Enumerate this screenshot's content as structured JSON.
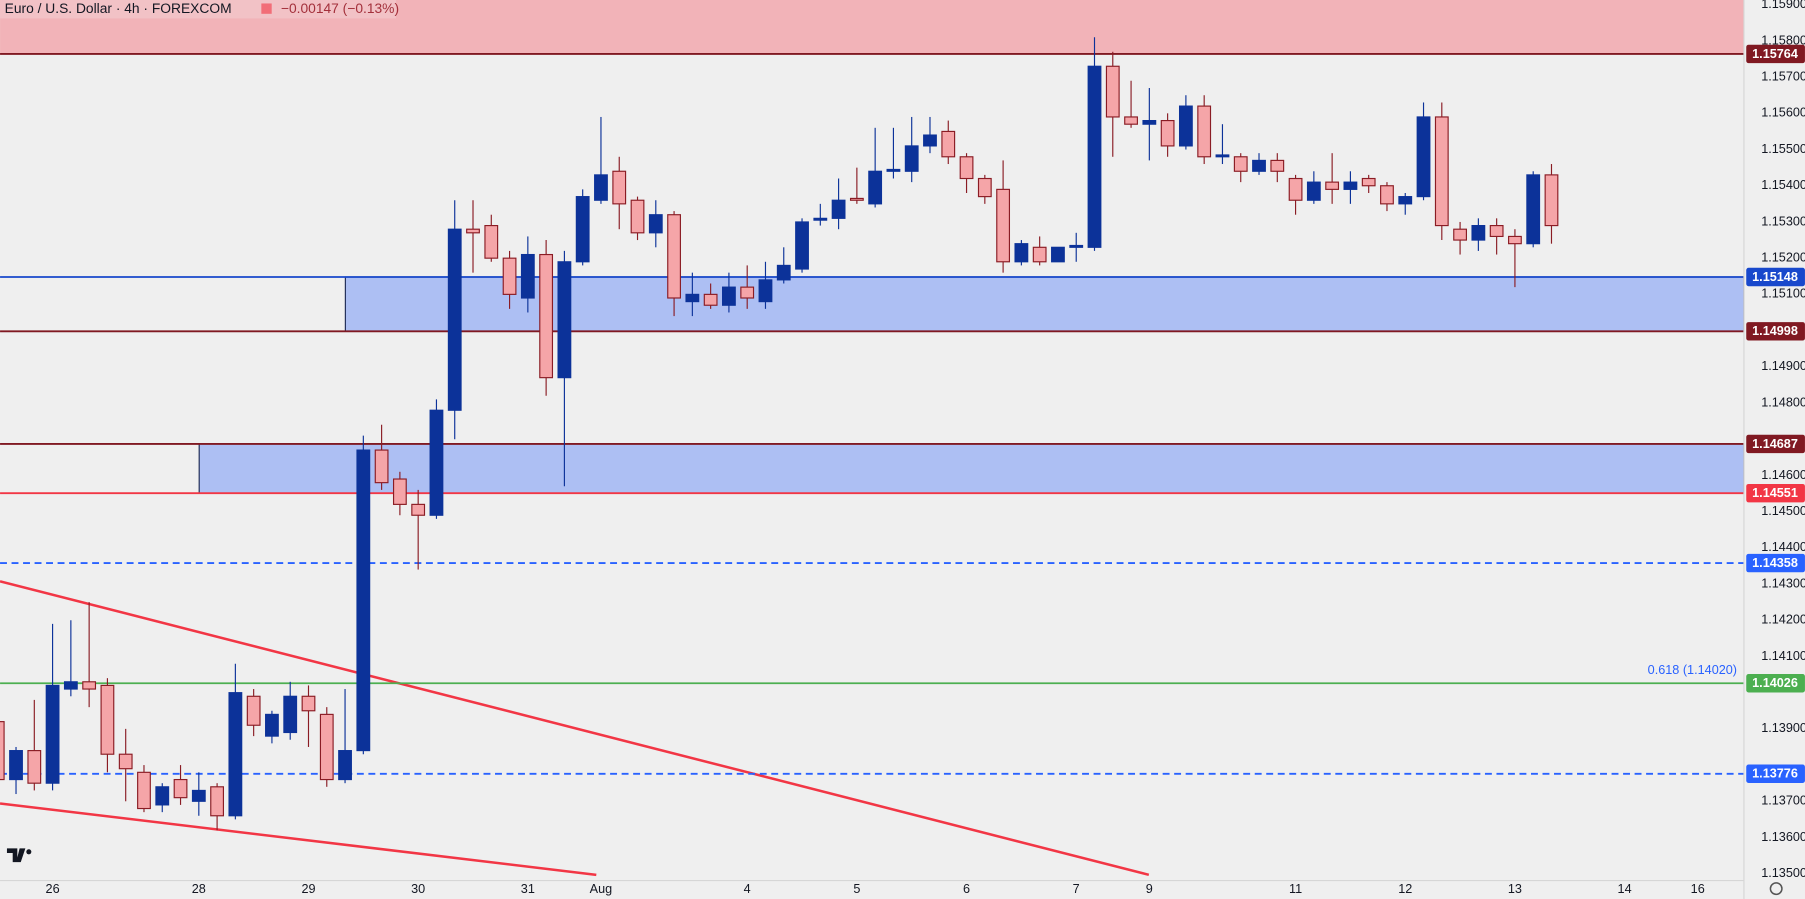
{
  "chart_data": {
    "type": "candlestick",
    "title": "Euro / U.S. Dollar · 4h · FOREXCOM",
    "subtitle": "−0.00147 (−0.13%)",
    "annotation": "0.618 (1.14020)",
    "categories": [
      null,
      null,
      null,
      "26",
      null,
      null,
      null,
      null,
      null,
      null,
      null,
      "28",
      null,
      null,
      null,
      null,
      null,
      "29",
      null,
      null,
      null,
      null,
      null,
      "30",
      null,
      null,
      null,
      null,
      null,
      "31",
      null,
      null,
      null,
      "Aug",
      null,
      null,
      null,
      null,
      null,
      null,
      null,
      "4",
      null,
      null,
      null,
      null,
      null,
      "5",
      null,
      null,
      null,
      null,
      null,
      "6",
      null,
      null,
      null,
      null,
      null,
      "7",
      null,
      null,
      null,
      "9",
      null,
      null,
      null,
      null,
      null,
      null,
      null,
      "11",
      null,
      null,
      null,
      null,
      null,
      "12",
      null,
      null,
      null,
      null,
      null,
      "13",
      null,
      null,
      null,
      null,
      null,
      "14",
      null,
      null,
      null,
      "16",
      null,
      null
    ],
    "open": [
      1.1392,
      1.1376,
      1.1384,
      1.1375,
      1.1401,
      1.1403,
      1.1402,
      1.1383,
      1.1378,
      1.1369,
      1.1376,
      1.137,
      1.1374,
      1.1366,
      1.1399,
      1.1388,
      1.1389,
      1.1399,
      1.1394,
      1.1376,
      1.1384,
      1.1467,
      1.1459,
      1.1452,
      1.1449,
      1.1478,
      1.1528,
      1.1529,
      1.152,
      1.1509,
      1.1521,
      1.1487,
      1.1519,
      1.1536,
      1.1544,
      1.1536,
      1.1527,
      1.1532,
      1.1508,
      1.151,
      1.1507,
      1.1512,
      1.1508,
      1.1514,
      1.1517,
      1.15305,
      1.1531,
      1.15365,
      1.1535,
      1.1544,
      1.1544,
      1.1551,
      1.1555,
      1.1548,
      1.1542,
      1.1539,
      1.1519,
      1.1523,
      1.1519,
      1.1523,
      1.1523,
      1.1573,
      1.1559,
      1.1557,
      1.1558,
      1.1551,
      1.1562,
      1.1548,
      1.1548,
      1.1544,
      1.1547,
      1.1542,
      1.1536,
      1.1541,
      1.1539,
      1.1542,
      1.154,
      1.1535,
      1.1537,
      1.1559,
      1.1528,
      1.1525,
      1.1529,
      1.1526,
      1.1524,
      1.1543,
      null,
      null,
      null,
      null,
      null,
      null,
      null,
      null,
      null,
      null
    ],
    "high": [
      1.1393,
      1.1385,
      1.1398,
      1.1419,
      1.142,
      1.1425,
      1.1404,
      1.139,
      1.138,
      1.1375,
      1.138,
      1.1378,
      1.1375,
      1.1408,
      1.1401,
      1.1395,
      1.1403,
      1.1402,
      1.1396,
      1.1401,
      1.1471,
      1.1474,
      1.1461,
      1.1456,
      1.1481,
      1.1536,
      1.1536,
      1.1532,
      1.1522,
      1.1526,
      1.1525,
      1.1522,
      1.1539,
      1.1559,
      1.1548,
      1.1537,
      1.1536,
      1.1533,
      1.1516,
      1.1513,
      1.1516,
      1.1518,
      1.1519,
      1.1523,
      1.1531,
      1.1535,
      1.1542,
      1.1545,
      1.1556,
      1.1556,
      1.1559,
      1.1559,
      1.1558,
      1.1549,
      1.1543,
      1.1547,
      1.1525,
      1.1526,
      1.1523,
      1.1527,
      1.1581,
      1.1577,
      1.1569,
      1.1567,
      1.156,
      1.1565,
      1.1565,
      1.1557,
      1.1549,
      1.1549,
      1.1549,
      1.1543,
      1.1544,
      1.1549,
      1.1544,
      1.1543,
      1.1541,
      1.1538,
      1.1563,
      1.1563,
      1.153,
      1.1531,
      1.1531,
      1.1528,
      1.1544,
      1.1546,
      null,
      null,
      null,
      null,
      null,
      null,
      null,
      null,
      null,
      null
    ],
    "low": [
      1.1375,
      1.1372,
      1.1373,
      1.1373,
      1.1399,
      1.1396,
      1.1378,
      1.137,
      1.1367,
      1.1367,
      1.1369,
      1.1366,
      1.1362,
      1.1365,
      1.1388,
      1.1386,
      1.1387,
      1.1385,
      1.1374,
      1.1375,
      1.1383,
      1.1456,
      1.1449,
      1.1434,
      1.1448,
      1.147,
      1.1516,
      1.1519,
      1.1506,
      1.1505,
      1.1482,
      1.1457,
      1.1518,
      1.1535,
      1.1528,
      1.1525,
      1.1523,
      1.1504,
      1.1504,
      1.1506,
      1.1505,
      1.1506,
      1.1506,
      1.1513,
      1.1516,
      1.1529,
      1.1528,
      1.1535,
      1.1534,
      1.1542,
      1.1541,
      1.1549,
      1.1546,
      1.1538,
      1.1535,
      1.1516,
      1.1518,
      1.1518,
      1.1519,
      1.1519,
      1.1522,
      1.1548,
      1.1556,
      1.1547,
      1.1548,
      1.155,
      1.1546,
      1.1546,
      1.1541,
      1.1543,
      1.1541,
      1.1532,
      1.1535,
      1.1535,
      1.1535,
      1.1538,
      1.1533,
      1.1532,
      1.1536,
      1.1525,
      1.1521,
      1.1522,
      1.1521,
      1.1512,
      1.1523,
      1.1524,
      null,
      null,
      null,
      null,
      null,
      null,
      null,
      null,
      null,
      null
    ],
    "close": [
      1.1376,
      1.1384,
      1.1375,
      1.1402,
      1.1403,
      1.1401,
      1.1383,
      1.1379,
      1.1368,
      1.1374,
      1.1371,
      1.1373,
      1.1366,
      1.14,
      1.1391,
      1.1394,
      1.1399,
      1.1395,
      1.1376,
      1.1384,
      1.1467,
      1.1458,
      1.1452,
      1.1449,
      1.1478,
      1.1528,
      1.1527,
      1.152,
      1.151,
      1.1521,
      1.1487,
      1.1519,
      1.1537,
      1.1543,
      1.1535,
      1.1527,
      1.1532,
      1.1509,
      1.151,
      1.1507,
      1.1512,
      1.1509,
      1.1514,
      1.1518,
      1.153,
      1.1531,
      1.1536,
      1.1536,
      1.1544,
      1.15445,
      1.1551,
      1.1554,
      1.1548,
      1.1542,
      1.1537,
      1.1519,
      1.1524,
      1.1519,
      1.1523,
      1.15235,
      1.1573,
      1.1559,
      1.1557,
      1.1558,
      1.1551,
      1.1562,
      1.1548,
      1.15485,
      1.1544,
      1.1547,
      1.1544,
      1.1536,
      1.1541,
      1.1539,
      1.1541,
      1.154,
      1.1535,
      1.1537,
      1.1559,
      1.1529,
      1.1525,
      1.1529,
      1.1526,
      1.1524,
      1.1543,
      1.1529,
      null,
      null,
      null,
      null,
      null,
      null,
      null,
      null,
      null,
      null
    ],
    "up_color": "#0c3299",
    "down_color": "#f5a5a8",
    "down_border": "#8a1c24",
    "ylim": [
      1.13481,
      1.15913
    ],
    "yticks": [
      {
        "value": 1.159,
        "label": "1.15900"
      },
      {
        "value": 1.158,
        "label": "1.15800"
      },
      {
        "value": 1.157,
        "label": "1.15700"
      },
      {
        "value": 1.156,
        "label": "1.15600"
      },
      {
        "value": 1.155,
        "label": "1.15500"
      },
      {
        "value": 1.154,
        "label": "1.15400"
      },
      {
        "value": 1.153,
        "label": "1.15300"
      },
      {
        "value": 1.152,
        "label": "1.15200"
      },
      {
        "value": 1.151,
        "label": "1.15100"
      },
      {
        "value": 1.149,
        "label": "1.14900"
      },
      {
        "value": 1.148,
        "label": "1.14800"
      },
      {
        "value": 1.146,
        "label": "1.14600"
      },
      {
        "value": 1.145,
        "label": "1.14500"
      },
      {
        "value": 1.144,
        "label": "1.14400"
      },
      {
        "value": 1.143,
        "label": "1.14300"
      },
      {
        "value": 1.142,
        "label": "1.14200"
      },
      {
        "value": 1.141,
        "label": "1.14100"
      },
      {
        "value": 1.139,
        "label": "1.13900"
      },
      {
        "value": 1.137,
        "label": "1.13700"
      },
      {
        "value": 1.136,
        "label": "1.13600"
      },
      {
        "value": 1.135,
        "label": "1.13500"
      }
    ],
    "grid": false,
    "levels": [
      {
        "price": 1.15764,
        "color": "#801922",
        "dashed": false
      },
      {
        "price": 1.15148,
        "color": "#1848cc",
        "dashed": false
      },
      {
        "price": 1.14998,
        "color": "#801922",
        "dashed": false
      },
      {
        "price": 1.14687,
        "color": "#801922",
        "dashed": false
      },
      {
        "price": 1.14551,
        "color": "#f23645",
        "dashed": false
      },
      {
        "price": 1.14358,
        "color": "#2962ff",
        "dashed": true
      },
      {
        "price": 1.14026,
        "color": "#4caf50",
        "dashed": false
      },
      {
        "price": 1.13776,
        "color": "#2962ff",
        "dashed": true
      }
    ]
  }
}
